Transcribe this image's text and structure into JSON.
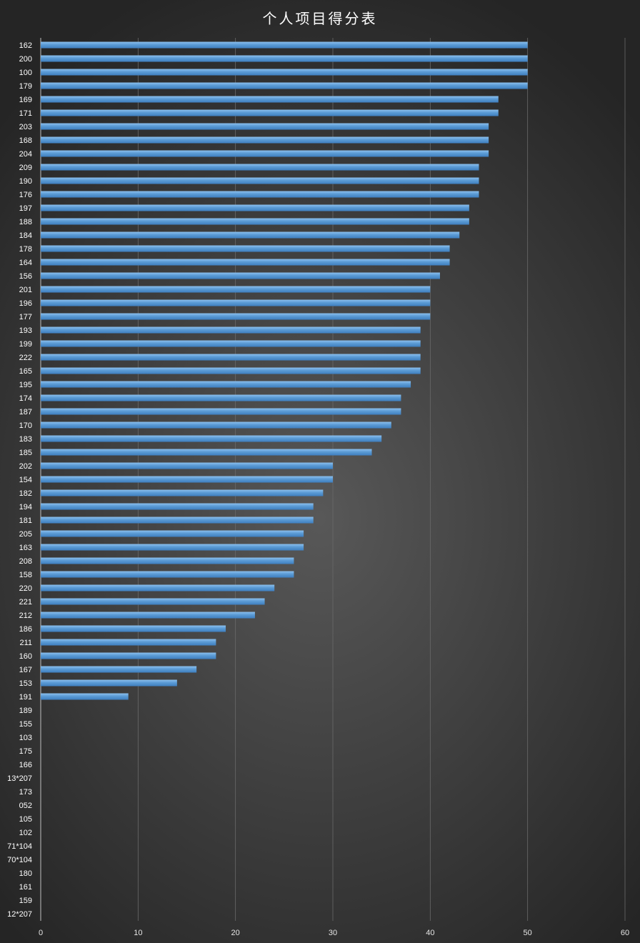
{
  "chart_data": {
    "type": "bar",
    "orientation": "horizontal",
    "title": "个人项目得分表",
    "xlabel": "",
    "ylabel": "",
    "xlim": [
      0,
      60
    ],
    "x_ticks": [
      "0",
      "10",
      "20",
      "30",
      "40",
      "50",
      "60"
    ],
    "grid": true,
    "legend": "none",
    "bar_color": "#5b9bd5",
    "categories": [
      "162",
      "200",
      "100",
      "179",
      "169",
      "171",
      "203",
      "168",
      "204",
      "209",
      "190",
      "176",
      "197",
      "188",
      "184",
      "178",
      "164",
      "156",
      "201",
      "196",
      "177",
      "193",
      "199",
      "222",
      "165",
      "195",
      "174",
      "187",
      "170",
      "183",
      "185",
      "202",
      "154",
      "182",
      "194",
      "181",
      "205",
      "163",
      "208",
      "158",
      "220",
      "221",
      "212",
      "186",
      "211",
      "160",
      "167",
      "153",
      "191",
      "189",
      "155",
      "103",
      "175",
      "166",
      "13*207",
      "173",
      "052",
      "105",
      "102",
      "71*104",
      "70*104",
      "180",
      "161",
      "159",
      "12*207"
    ],
    "values": [
      50,
      50,
      50,
      50,
      47,
      47,
      46,
      46,
      46,
      45,
      45,
      45,
      44,
      44,
      43,
      42,
      42,
      41,
      40,
      40,
      40,
      39,
      39,
      39,
      39,
      38,
      37,
      37,
      36,
      35,
      34,
      30,
      30,
      29,
      28,
      28,
      27,
      27,
      26,
      26,
      24,
      23,
      22,
      19,
      18,
      18,
      16,
      14,
      9,
      0,
      0,
      0,
      0,
      0,
      0,
      0,
      0,
      0,
      0,
      0,
      0,
      0,
      0,
      0,
      0
    ]
  }
}
